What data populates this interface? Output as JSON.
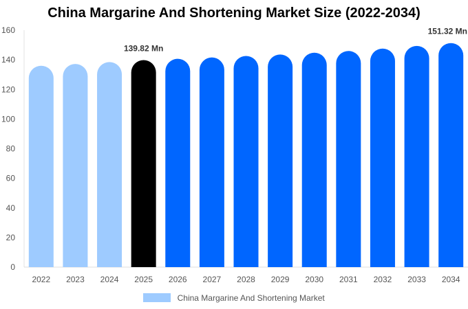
{
  "chart_data": {
    "type": "bar",
    "title": "China Margarine And Shortening Market Size (2022-2034)",
    "categories": [
      "2022",
      "2023",
      "2024",
      "2025",
      "2026",
      "2027",
      "2028",
      "2029",
      "2030",
      "2031",
      "2032",
      "2033",
      "2034"
    ],
    "series": [
      {
        "name": "China Margarine And Shortening Market",
        "values": [
          136.0,
          137.2,
          138.5,
          139.82,
          140.7,
          141.6,
          142.6,
          143.6,
          144.8,
          146.0,
          147.6,
          149.4,
          151.32
        ]
      }
    ],
    "data_labels": [
      {
        "category": "2025",
        "text": "139.82 Mn"
      },
      {
        "category": "2034",
        "text": "151.32 Mn"
      }
    ],
    "yticks": [
      "0",
      "20",
      "40",
      "60",
      "80",
      "100",
      "120",
      "140",
      "160"
    ],
    "ylim": [
      0,
      160
    ],
    "xlabel": "",
    "ylabel": "",
    "grid": false,
    "legend_position": "bottom",
    "colors": {
      "history": "#9ecbff",
      "current": "#000000",
      "forecast": "#0066ff",
      "legend": "#9ecbff"
    },
    "color_groups": [
      "history",
      "history",
      "history",
      "current",
      "forecast",
      "forecast",
      "forecast",
      "forecast",
      "forecast",
      "forecast",
      "forecast",
      "forecast",
      "forecast"
    ]
  }
}
